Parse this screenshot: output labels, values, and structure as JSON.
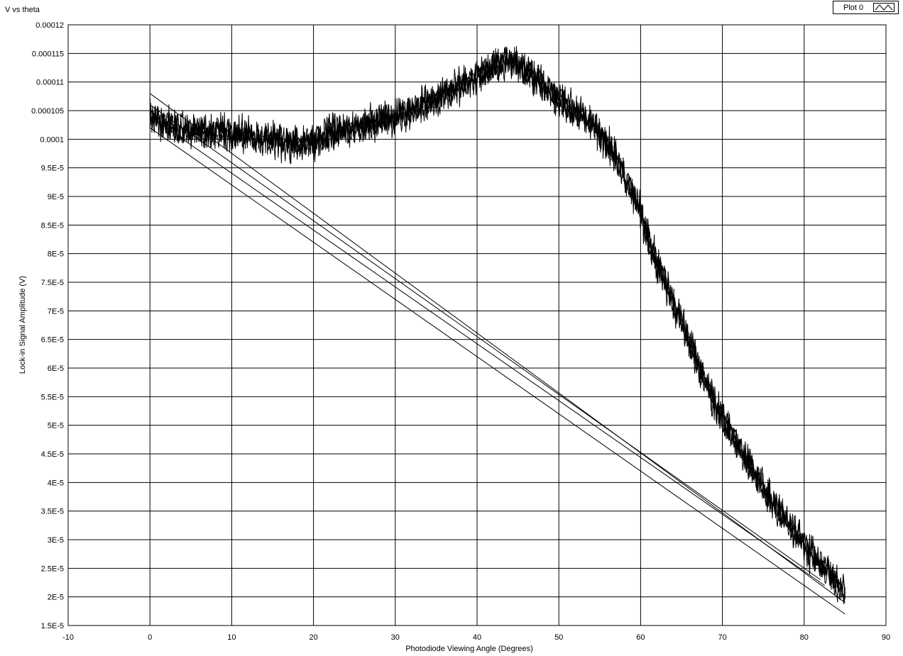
{
  "chart_data": {
    "type": "line",
    "title": "V vs theta",
    "xlabel": "Photodiode Viewing Angle (Degrees)",
    "ylabel": "Lock-in Signal Amplitude (V)",
    "xlim": [
      -10,
      90
    ],
    "ylim": [
      1.5e-05,
      0.00012
    ],
    "x_ticks": [
      "-10",
      "0",
      "10",
      "20",
      "30",
      "40",
      "50",
      "60",
      "70",
      "80",
      "90"
    ],
    "y_ticks": [
      "0.00012",
      "0.000115",
      "0.00011",
      "0.000105",
      "0.0001",
      "9.5E-5",
      "9E-5",
      "8.5E-5",
      "8E-5",
      "7.5E-5",
      "7E-5",
      "6.5E-5",
      "6E-5",
      "5.5E-5",
      "5E-5",
      "4.5E-5",
      "4E-5",
      "3.5E-5",
      "3E-5",
      "2.5E-5",
      "2E-5",
      "1.5E-5"
    ],
    "grid": true,
    "legend": {
      "position": "top-right",
      "entries": [
        "Plot 0"
      ]
    },
    "colors": {
      "series": "#000000",
      "grid": "#000000",
      "background": "#ffffff"
    },
    "series": [
      {
        "name": "Plot 0",
        "noise_amplitude": 2.2e-06,
        "sweep": {
          "x": [
            0,
            3,
            6,
            10,
            15,
            17,
            20,
            25,
            30,
            35,
            40,
            44,
            47,
            50,
            53,
            55,
            57,
            60,
            62,
            65,
            68,
            70,
            75,
            80,
            85
          ],
          "y": [
            0.000104,
            0.000102,
            0.0001015,
            0.000101,
            0.0001,
            9.9e-05,
            0.0001,
            0.000102,
            0.000104,
            0.000107,
            0.000111,
            0.000114,
            0.000111,
            0.000107,
            0.000104,
            0.000101,
            9.7e-05,
            8.7e-05,
            7.8e-05,
            6.8e-05,
            5.7e-05,
            5.1e-05,
            3.9e-05,
            2.9e-05,
            2.1e-05
          ]
        },
        "return_lines": [
          {
            "x": [
              85,
              0
            ],
            "y": [
              1.7e-05,
              0.000102
            ]
          },
          {
            "x": [
              82.5,
              0
            ],
            "y": [
              2.2e-05,
              0.000104
            ]
          },
          {
            "x": [
              82,
              0
            ],
            "y": [
              2.3e-05,
              0.000106
            ]
          },
          {
            "x": [
              85,
              0
            ],
            "y": [
              1.9e-05,
              0.000108
            ]
          }
        ]
      }
    ]
  }
}
